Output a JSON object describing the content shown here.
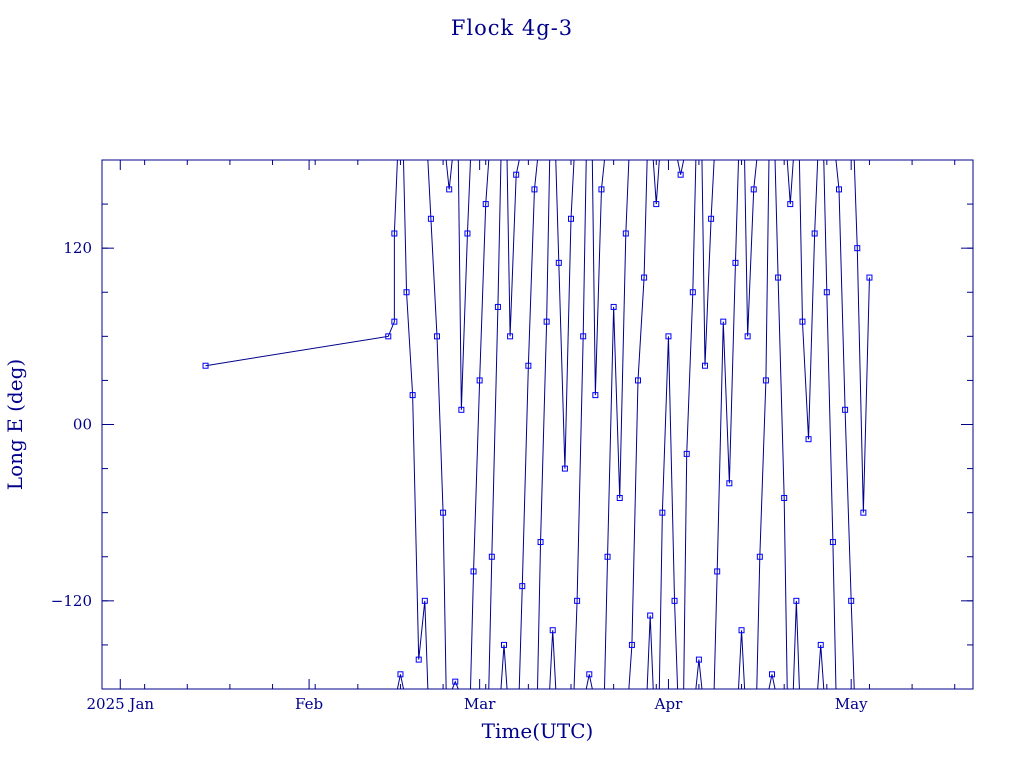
{
  "chart_data": {
    "type": "line",
    "title": "Flock 4g-3",
    "xlabel": "Time(UTC)",
    "ylabel": "Long E (deg)",
    "xlim": [
      "2024-12-29",
      "2025-05-21"
    ],
    "ylim": [
      -180,
      180
    ],
    "x_ticks": [
      {
        "date": "2025-01-01",
        "label": "2025 Jan"
      },
      {
        "date": "2025-02-01",
        "label": "Feb"
      },
      {
        "date": "2025-03-01",
        "label": "Mar"
      },
      {
        "date": "2025-04-01",
        "label": "Apr"
      },
      {
        "date": "2025-05-01",
        "label": "May"
      }
    ],
    "y_ticks": [
      {
        "value": 120,
        "label": "120"
      },
      {
        "value": 0,
        "label": "00"
      },
      {
        "value": -120,
        "label": "−120"
      }
    ],
    "grid": false,
    "series": [
      {
        "x": [
          "2025-01-15",
          "2025-02-14",
          "2025-02-15",
          "2025-02-15",
          "2025-02-16",
          "2025-02-17",
          "2025-02-18",
          "2025-02-19",
          "2025-02-20",
          "2025-02-21",
          "2025-02-22",
          "2025-02-23",
          "2025-02-24",
          "2025-02-25",
          "2025-02-26",
          "2025-02-27",
          "2025-02-28",
          "2025-03-01",
          "2025-03-02",
          "2025-03-03",
          "2025-03-04",
          "2025-03-05",
          "2025-03-06",
          "2025-03-07",
          "2025-03-08",
          "2025-03-09",
          "2025-03-10",
          "2025-03-11",
          "2025-03-12",
          "2025-03-13",
          "2025-03-14",
          "2025-03-15",
          "2025-03-16",
          "2025-03-17",
          "2025-03-18",
          "2025-03-19",
          "2025-03-20",
          "2025-03-21",
          "2025-03-22",
          "2025-03-23",
          "2025-03-24",
          "2025-03-25",
          "2025-03-26",
          "2025-03-27",
          "2025-03-28",
          "2025-03-29",
          "2025-03-30",
          "2025-03-31",
          "2025-04-01",
          "2025-04-02",
          "2025-04-03",
          "2025-04-04",
          "2025-04-05",
          "2025-04-06",
          "2025-04-07",
          "2025-04-08",
          "2025-04-09",
          "2025-04-10",
          "2025-04-11",
          "2025-04-12",
          "2025-04-13",
          "2025-04-14",
          "2025-04-15",
          "2025-04-16",
          "2025-04-17",
          "2025-04-18",
          "2025-04-19",
          "2025-04-20",
          "2025-04-21",
          "2025-04-22",
          "2025-04-23",
          "2025-04-24",
          "2025-04-25",
          "2025-04-26",
          "2025-04-27",
          "2025-04-28",
          "2025-04-29",
          "2025-04-30",
          "2025-05-01",
          "2025-05-02",
          "2025-05-03",
          "2025-05-04"
        ],
        "y": [
          40,
          60,
          70,
          130,
          -170,
          90,
          20,
          -160,
          -120,
          140,
          60,
          -60,
          160,
          -175,
          10,
          130,
          -100,
          30,
          150,
          -90,
          80,
          -150,
          60,
          170,
          -110,
          40,
          160,
          -80,
          70,
          -140,
          110,
          -30,
          140,
          -120,
          60,
          -170,
          20,
          160,
          -90,
          80,
          -50,
          130,
          -150,
          30,
          100,
          -130,
          150,
          -60,
          60,
          -120,
          170,
          -20,
          90,
          -160,
          40,
          140,
          -100,
          70,
          -40,
          110,
          -140,
          60,
          160,
          -90,
          30,
          -170,
          100,
          -50,
          150,
          -120,
          70,
          -10,
          130,
          -150,
          90,
          -80,
          160,
          10,
          -120,
          120,
          -60,
          100
        ]
      }
    ]
  }
}
